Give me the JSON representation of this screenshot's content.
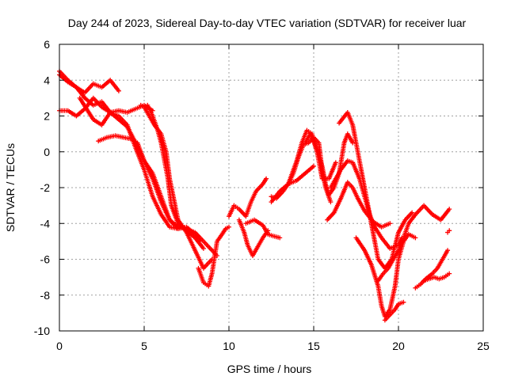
{
  "chart_data": {
    "type": "scatter",
    "title": "Day 244 of 2023, Sidereal Day-to-day VTEC variation (SDTVAR) for receiver luar",
    "xlabel": "GPS time / hours",
    "ylabel": "SDTVAR / TECUs",
    "xlim": [
      0,
      25
    ],
    "ylim": [
      -10,
      6
    ],
    "xticks": [
      0,
      5,
      10,
      15,
      20,
      25
    ],
    "yticks": [
      -10,
      -8,
      -6,
      -4,
      -2,
      0,
      2,
      4,
      6
    ],
    "grid": true,
    "legend": "none",
    "marker": "+",
    "color": "#ff0000",
    "tracks": [
      {
        "x": [
          0.0,
          0.5,
          1.0,
          1.5,
          2.0,
          2.5,
          3.0,
          3.5
        ],
        "y": [
          4.3,
          3.9,
          3.6,
          3.3,
          3.8,
          3.6,
          4.0,
          3.4
        ]
      },
      {
        "x": [
          0.0,
          0.5,
          1.0,
          1.5,
          2.0,
          2.5,
          3.0,
          3.5,
          4.0,
          4.5,
          5.0,
          5.5,
          6.0,
          6.5,
          7.0,
          7.5,
          8.0,
          8.3
        ],
        "y": [
          4.5,
          4.0,
          3.6,
          3.0,
          2.6,
          2.8,
          2.2,
          1.8,
          1.4,
          0.5,
          -0.5,
          -1.2,
          -2.5,
          -3.8,
          -4.3,
          -4.2,
          -4.6,
          -5.0
        ]
      },
      {
        "x": [
          0.0,
          0.5,
          1.0,
          1.5,
          2.0,
          2.5,
          3.0,
          3.5,
          4.0,
          4.5,
          5.0,
          5.5
        ],
        "y": [
          2.3,
          2.3,
          2.0,
          2.4,
          3.0,
          2.5,
          2.2,
          2.3,
          2.2,
          2.4,
          2.6,
          2.3
        ]
      },
      {
        "x": [
          1.2,
          1.6,
          2.0,
          2.5,
          3.0,
          3.5,
          4.0,
          4.5,
          5.0,
          5.5,
          6.0,
          6.5,
          7.0
        ],
        "y": [
          3.0,
          2.4,
          1.8,
          1.5,
          2.2,
          2.0,
          1.5,
          0.2,
          -1.0,
          -2.5,
          -3.5,
          -4.2,
          -4.3
        ]
      },
      {
        "x": [
          2.3,
          2.8,
          3.3,
          3.8,
          4.3,
          4.6,
          5.0,
          5.5,
          6.0,
          6.5,
          7.0,
          7.5,
          8.0,
          8.5,
          9.0,
          9.3
        ],
        "y": [
          0.6,
          0.8,
          0.9,
          0.8,
          0.7,
          0.5,
          -0.5,
          -1.5,
          -2.8,
          -3.8,
          -4.2,
          -4.3,
          -4.5,
          -5.0,
          -5.5,
          -5.8
        ]
      },
      {
        "x": [
          4.8,
          5.0,
          5.3,
          5.6,
          6.0,
          6.3,
          6.5,
          7.0,
          7.5,
          8.0,
          8.5,
          9.0
        ],
        "y": [
          2.6,
          2.5,
          2.0,
          1.5,
          1.0,
          0.0,
          -1.5,
          -3.8,
          -4.5,
          -5.5,
          -6.5,
          -6.0
        ]
      },
      {
        "x": [
          5.2,
          5.5,
          5.8,
          6.0,
          6.2,
          6.4,
          6.6,
          7.0,
          7.5,
          8.0,
          8.5
        ],
        "y": [
          2.6,
          2.0,
          1.2,
          0.5,
          -0.5,
          -1.5,
          -3.0,
          -4.0,
          -4.4,
          -4.8,
          -5.4
        ]
      },
      {
        "x": [
          8.2,
          8.5,
          8.8,
          9.0,
          9.3,
          9.6,
          9.8,
          10.0
        ],
        "y": [
          -6.5,
          -7.3,
          -7.5,
          -6.8,
          -5.0,
          -4.6,
          -4.3,
          -4.2
        ]
      },
      {
        "x": [
          10.0,
          10.3,
          10.6,
          11.0,
          11.3,
          11.6,
          12.0,
          12.2
        ],
        "y": [
          -3.6,
          -3.0,
          -3.2,
          -3.6,
          -2.8,
          -2.2,
          -1.8,
          -1.5
        ]
      },
      {
        "x": [
          10.6,
          10.9,
          11.1,
          11.4,
          11.7,
          12.0,
          12.3
        ],
        "y": [
          -3.8,
          -4.5,
          -5.2,
          -5.8,
          -5.3,
          -4.8,
          -4.4
        ]
      },
      {
        "x": [
          11.0,
          11.5,
          12.0,
          12.3,
          12.6,
          13.0
        ],
        "y": [
          -4.0,
          -3.8,
          -4.1,
          -4.6,
          -4.7,
          -4.8
        ]
      },
      {
        "x": [
          12.5,
          13.0,
          13.5,
          14.0,
          14.5,
          15.0
        ],
        "y": [
          -2.8,
          -2.2,
          -1.8,
          -1.6,
          -1.2,
          -0.8
        ]
      },
      {
        "x": [
          12.5,
          12.8,
          13.2,
          13.5,
          14.0,
          14.3,
          14.6,
          14.9,
          15.2,
          15.5,
          15.9,
          16.3
        ],
        "y": [
          -2.5,
          -2.6,
          -2.2,
          -1.8,
          -0.5,
          0.5,
          1.2,
          1.0,
          0.0,
          -1.5,
          -1.5,
          -0.6
        ]
      },
      {
        "x": [
          13.5,
          13.8,
          14.1,
          14.4,
          14.7,
          15.0,
          15.3,
          15.5,
          15.7,
          16.0
        ],
        "y": [
          -1.8,
          -1.2,
          -0.3,
          0.4,
          0.5,
          0.8,
          0.5,
          -1.0,
          -2.0,
          -2.8
        ]
      },
      {
        "x": [
          14.5,
          14.8,
          15.0,
          15.2,
          15.5,
          15.7,
          15.9,
          16.2,
          16.5,
          16.8,
          17.0,
          17.3
        ],
        "y": [
          0.5,
          1.0,
          0.6,
          0.0,
          -0.8,
          -1.8,
          -2.4,
          -2.0,
          -1.2,
          0.5,
          1.0,
          0.5
        ]
      },
      {
        "x": [
          15.8,
          16.2,
          16.6,
          17.0,
          17.3,
          17.6,
          18.0,
          18.5,
          19.0,
          19.5
        ],
        "y": [
          -3.8,
          -3.4,
          -2.6,
          -1.7,
          -2.0,
          -2.6,
          -3.3,
          -3.9,
          -4.2,
          -4.0
        ]
      },
      {
        "x": [
          16.0,
          16.3,
          16.6,
          17.0,
          17.3,
          17.7,
          18.0,
          18.3,
          18.6,
          19.0,
          19.5,
          20.0,
          20.2
        ],
        "y": [
          -2.0,
          -1.5,
          -1.0,
          -0.5,
          -0.6,
          -1.5,
          -2.5,
          -3.5,
          -4.2,
          -4.8,
          -5.4,
          -5.2,
          -4.8
        ]
      },
      {
        "x": [
          16.5,
          17.0,
          17.3,
          17.6,
          17.9,
          18.2,
          18.5,
          18.8,
          19.2,
          19.6,
          20.0,
          20.4,
          20.8
        ],
        "y": [
          1.6,
          2.2,
          1.5,
          0.0,
          -1.5,
          -3.0,
          -4.5,
          -6.0,
          -6.5,
          -6.0,
          -4.5,
          -3.8,
          -3.4
        ]
      },
      {
        "x": [
          17.5,
          18.0,
          18.4,
          18.8,
          19.0,
          19.2,
          19.5,
          19.8,
          20.0,
          20.3,
          20.6,
          21.0
        ],
        "y": [
          -4.8,
          -5.5,
          -6.3,
          -7.5,
          -8.6,
          -9.2,
          -8.8,
          -7.5,
          -6.0,
          -5.0,
          -4.6,
          -4.8
        ]
      },
      {
        "x": [
          18.8,
          19.1,
          19.4,
          19.7,
          20.0,
          20.3,
          20.6,
          21.0,
          21.5,
          22.0,
          22.5,
          23.0
        ],
        "y": [
          -7.2,
          -6.8,
          -6.5,
          -6.0,
          -5.5,
          -4.8,
          -4.0,
          -3.5,
          -3.0,
          -3.5,
          -3.8,
          -3.2
        ]
      },
      {
        "x": [
          19.2,
          19.5,
          19.8,
          20.0,
          20.3
        ],
        "y": [
          -9.4,
          -9.1,
          -8.8,
          -8.5,
          -8.4
        ]
      },
      {
        "x": [
          21.0,
          21.3,
          21.6,
          22.0,
          22.3,
          22.6,
          22.9
        ],
        "y": [
          -7.6,
          -7.4,
          -7.1,
          -6.8,
          -6.5,
          -6.0,
          -5.5
        ]
      },
      {
        "x": [
          21.5,
          21.8,
          22.1,
          22.4,
          22.7,
          23.0
        ],
        "y": [
          -7.2,
          -7.1,
          -7.0,
          -7.1,
          -7.0,
          -6.8
        ]
      },
      {
        "x": [
          22.9,
          23.0
        ],
        "y": [
          -4.5,
          -4.4
        ]
      }
    ]
  }
}
